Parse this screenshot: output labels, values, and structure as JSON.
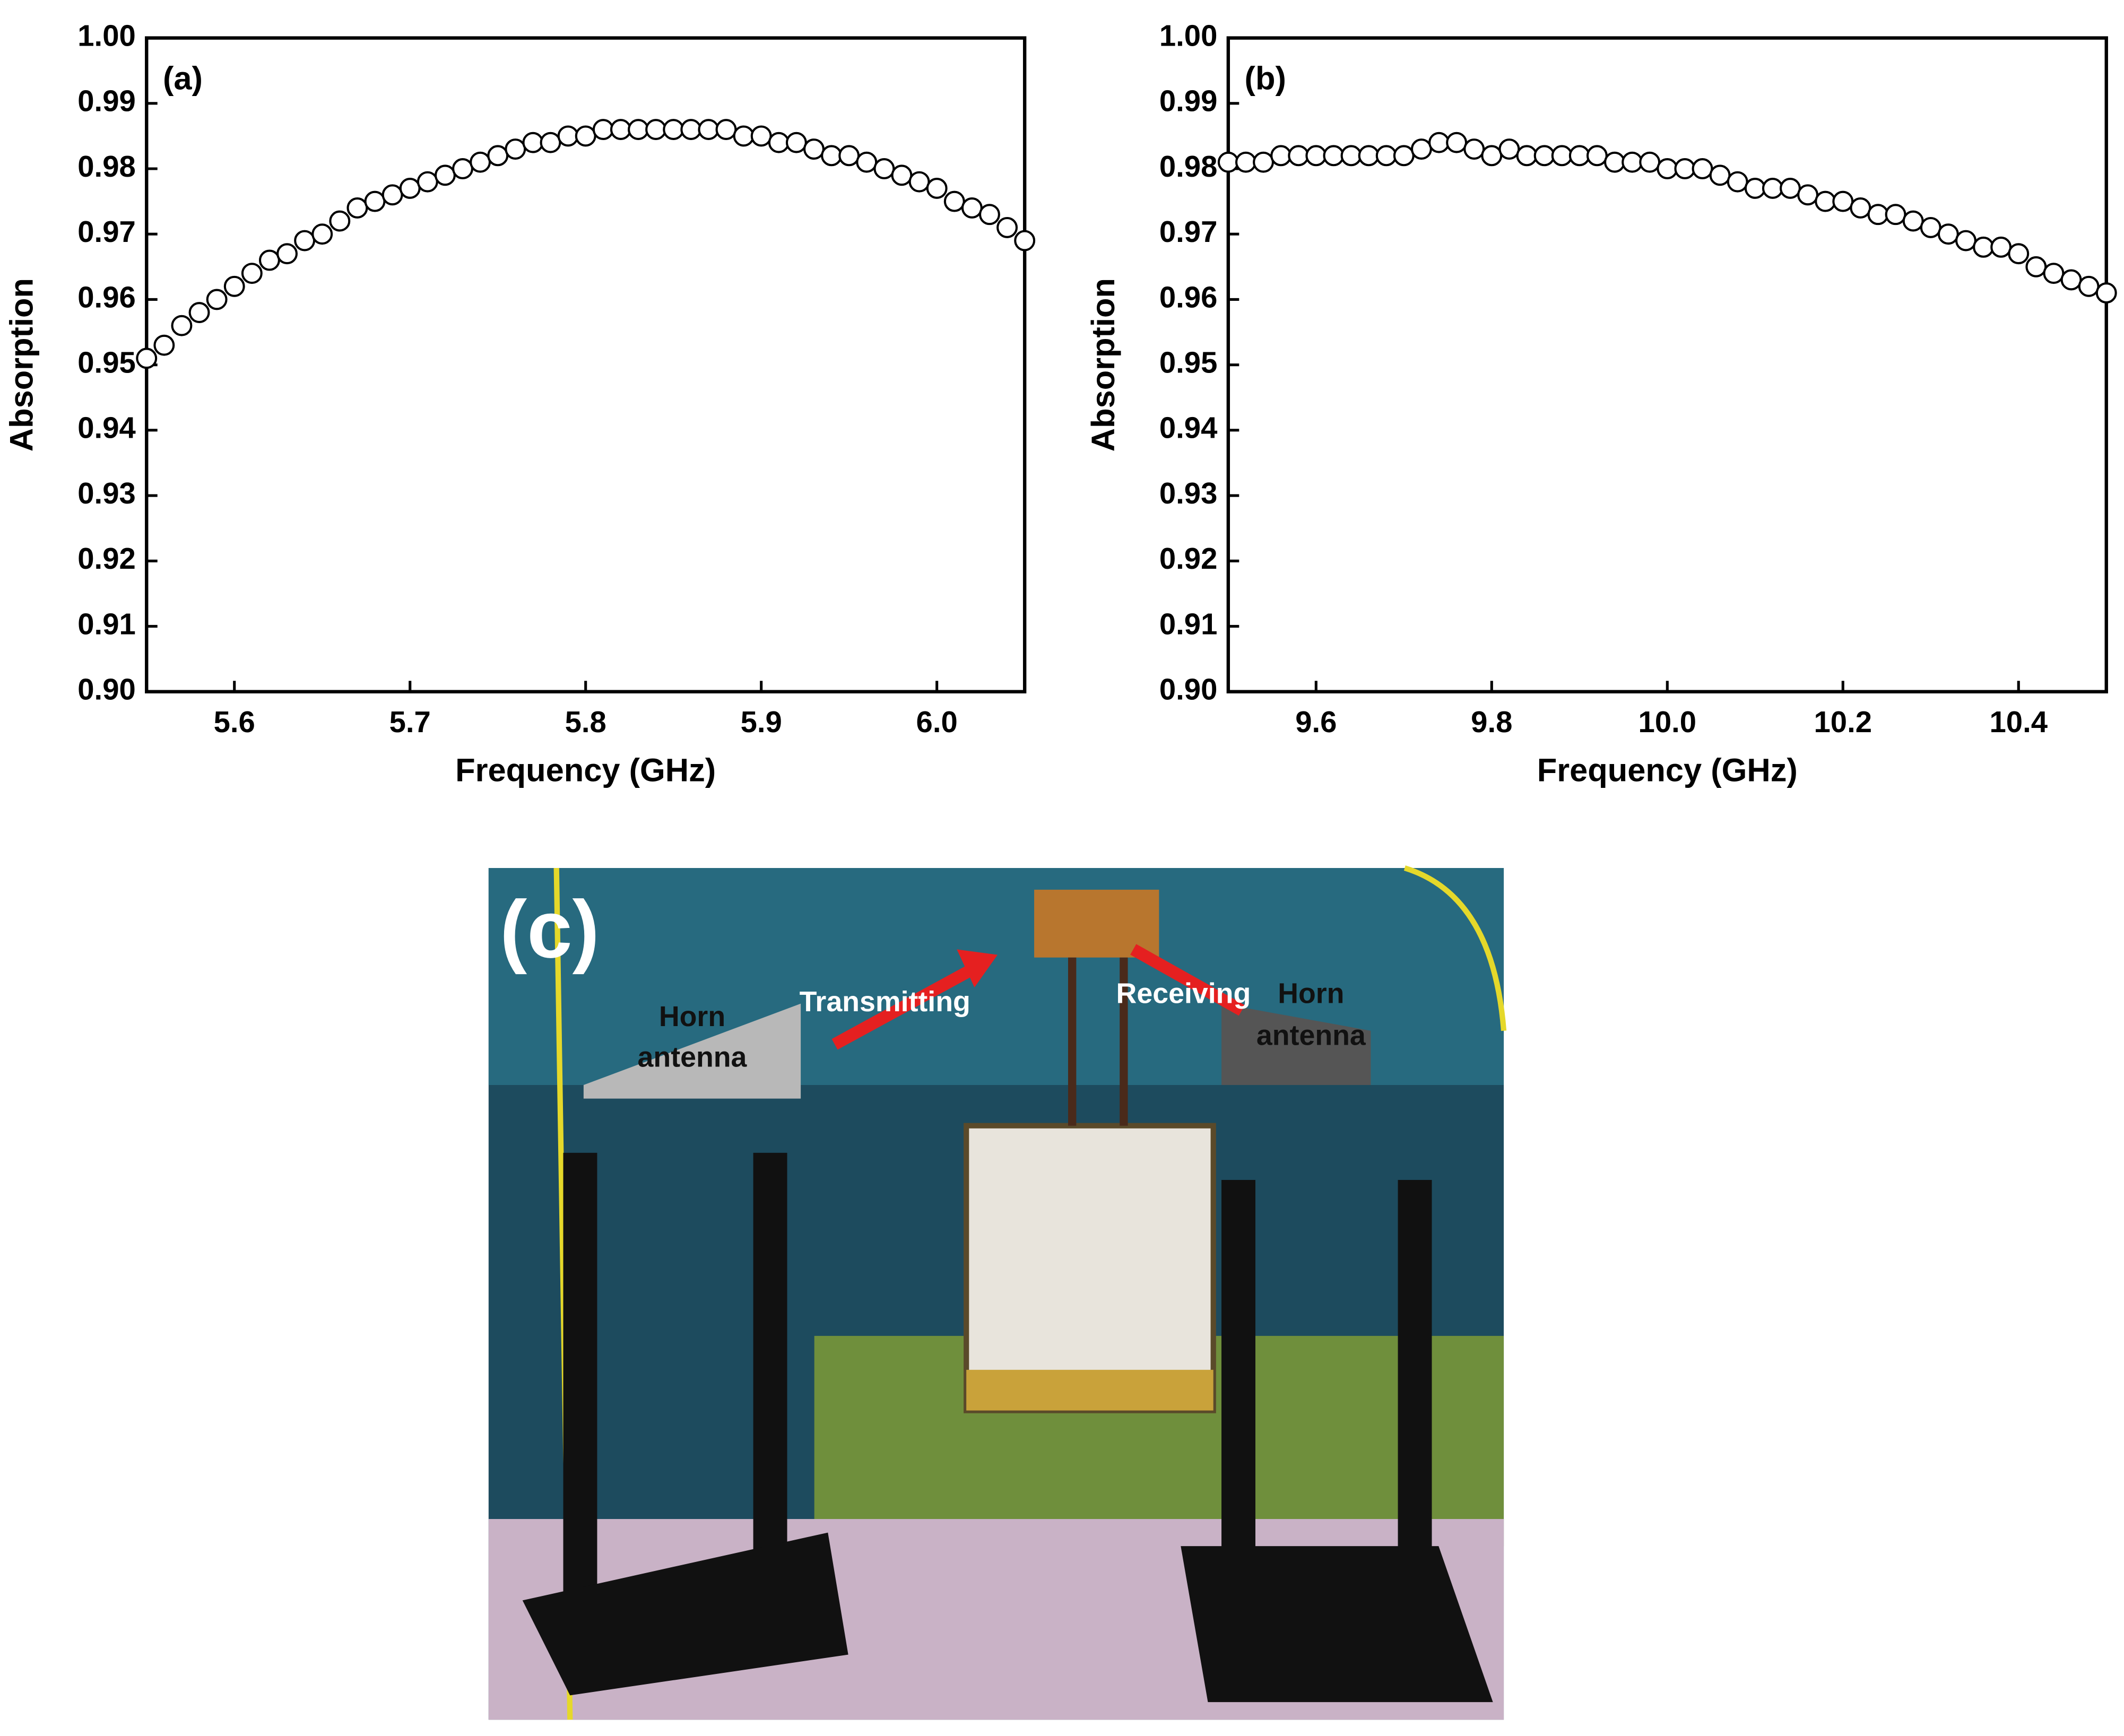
{
  "chart_data": [
    {
      "type": "scatter",
      "panel_label": "(a)",
      "x_label": "Frequency (GHz)",
      "y_label": "Absorption",
      "marker_color": "#000000",
      "x": [
        5.55,
        5.56,
        5.57,
        5.58,
        5.59,
        5.6,
        5.61,
        5.62,
        5.63,
        5.64,
        5.65,
        5.66,
        5.67,
        5.68,
        5.69,
        5.7,
        5.71,
        5.72,
        5.73,
        5.74,
        5.75,
        5.76,
        5.77,
        5.78,
        5.79,
        5.8,
        5.81,
        5.82,
        5.83,
        5.84,
        5.85,
        5.86,
        5.87,
        5.88,
        5.89,
        5.9,
        5.91,
        5.92,
        5.93,
        5.94,
        5.95,
        5.96,
        5.97,
        5.98,
        5.99,
        6.0,
        6.01,
        6.02,
        6.03,
        6.04,
        6.05
      ],
      "values": [
        0.951,
        0.953,
        0.956,
        0.958,
        0.96,
        0.962,
        0.964,
        0.966,
        0.967,
        0.969,
        0.97,
        0.972,
        0.974,
        0.975,
        0.976,
        0.977,
        0.978,
        0.979,
        0.98,
        0.981,
        0.982,
        0.983,
        0.984,
        0.984,
        0.985,
        0.985,
        0.986,
        0.986,
        0.986,
        0.986,
        0.986,
        0.986,
        0.986,
        0.986,
        0.985,
        0.985,
        0.984,
        0.984,
        0.983,
        0.982,
        0.982,
        0.981,
        0.98,
        0.979,
        0.978,
        0.977,
        0.975,
        0.974,
        0.973,
        0.971,
        0.969
      ],
      "xlim": [
        5.55,
        6.05
      ],
      "xticks": [
        5.6,
        5.7,
        5.8,
        5.9,
        {
          "value": 6,
          "label": "6.0"
        }
      ],
      "ylim": [
        0.9,
        1
      ],
      "yticks": [
        {
          "value": 0.9,
          "label": "0.90"
        },
        0.91,
        0.92,
        0.93,
        0.94,
        0.95,
        0.96,
        0.97,
        0.98,
        0.99,
        {
          "value": 1,
          "label": "1.00"
        }
      ]
    },
    {
      "type": "scatter",
      "panel_label": "(b)",
      "x_label": "Frequency (GHz)",
      "y_label": "Absorption",
      "marker_color": "#000000",
      "x": [
        9.5,
        9.52,
        9.54,
        9.56,
        9.58,
        9.6,
        9.62,
        9.64,
        9.66,
        9.68,
        9.7,
        9.72,
        9.74,
        9.76,
        9.78,
        9.8,
        9.82,
        9.84,
        9.86,
        9.88,
        9.9,
        9.92,
        9.94,
        9.96,
        9.98,
        10.0,
        10.02,
        10.04,
        10.06,
        10.08,
        10.1,
        10.12,
        10.14,
        10.16,
        10.18,
        10.2,
        10.22,
        10.24,
        10.26,
        10.28,
        10.3,
        10.32,
        10.34,
        10.36,
        10.38,
        10.4,
        10.42,
        10.44,
        10.46,
        10.48,
        10.5
      ],
      "values": [
        0.981,
        0.981,
        0.981,
        0.982,
        0.982,
        0.982,
        0.982,
        0.982,
        0.982,
        0.982,
        0.982,
        0.983,
        0.984,
        0.984,
        0.983,
        0.982,
        0.983,
        0.982,
        0.982,
        0.982,
        0.982,
        0.982,
        0.981,
        0.981,
        0.981,
        0.98,
        0.98,
        0.98,
        0.979,
        0.978,
        0.977,
        0.977,
        0.977,
        0.976,
        0.975,
        0.975,
        0.974,
        0.973,
        0.973,
        0.972,
        0.971,
        0.97,
        0.969,
        0.968,
        0.968,
        0.967,
        0.965,
        0.964,
        0.963,
        0.962,
        0.961
      ],
      "xlim": [
        9.5,
        10.5
      ],
      "xticks": [
        9.6,
        9.8,
        {
          "value": 10,
          "label": "10.0"
        },
        10.2,
        10.4
      ],
      "ylim": [
        0.9,
        1
      ],
      "yticks": [
        {
          "value": 0.9,
          "label": "0.90"
        },
        0.91,
        0.92,
        0.93,
        0.94,
        0.95,
        0.96,
        0.97,
        0.98,
        0.99,
        {
          "value": 1,
          "label": "1.00"
        }
      ]
    }
  ],
  "photo": {
    "panel_label": "(c)",
    "labels": [
      "Horn",
      "antenna",
      "Transmitting",
      "Receiving",
      "Horn",
      "antenna"
    ]
  }
}
